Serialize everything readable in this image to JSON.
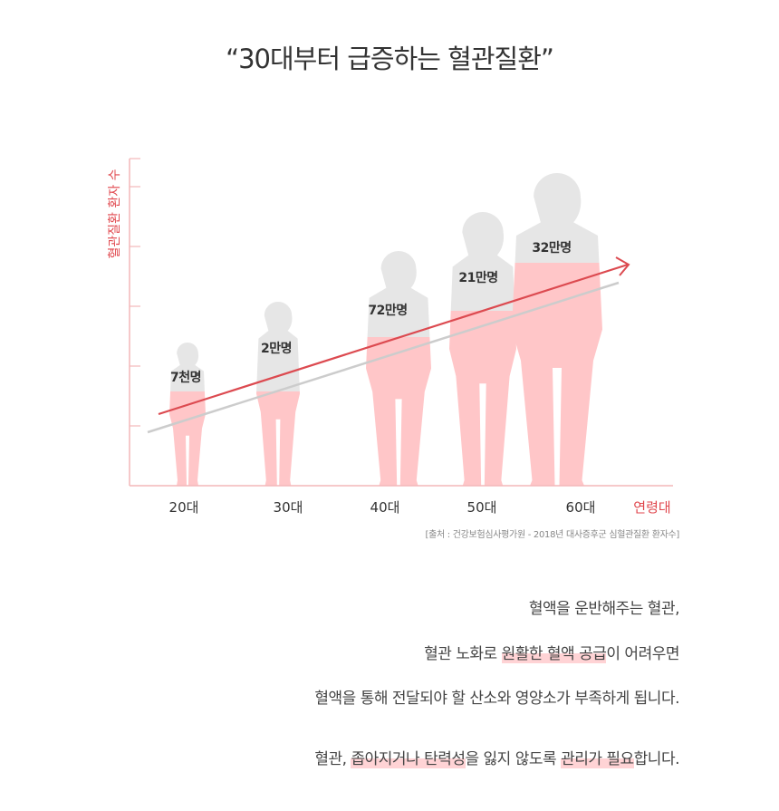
{
  "title": "“30대부터 급증하는 혈관질환”",
  "colors": {
    "accent": "#e0464c",
    "highlight": "#ffd3d5",
    "figure_grey": "#e6e6e6",
    "figure_pink": "#ffc6c8",
    "trend_grey": "#cccccc"
  },
  "chart_data": {
    "type": "bar",
    "title": "",
    "xlabel": "연령대",
    "ylabel": "혈관질환 환자 수",
    "categories": [
      "20대",
      "30대",
      "40대",
      "50대",
      "60대"
    ],
    "data_labels": [
      "7천명",
      "2만명",
      "72만명",
      "21만명",
      "32만명"
    ],
    "values": [
      7000,
      20000,
      720000,
      210000,
      320000
    ],
    "grid": false,
    "trend_arrow": true
  },
  "source": "[출처 : 건강보험심사평가원 - 2018년 대사증후군 심혈관질환 환자수]",
  "body": {
    "lines": [
      [
        {
          "text": "혈액을 운반해주는 혈관,",
          "hl": false
        }
      ],
      [
        {
          "text": "혈관 노화로 ",
          "hl": false
        },
        {
          "text": "원활한 혈액 공급",
          "hl": true
        },
        {
          "text": "이 어려우면",
          "hl": false
        }
      ],
      [
        {
          "text": "혈액을 통해 전달되야 할 산소와 영양소가 부족하게 됩니다.",
          "hl": false
        }
      ],
      [
        {
          "text": "혈관, ",
          "hl": false
        },
        {
          "text": "좁아지거나 탄력성",
          "hl": true
        },
        {
          "text": "을 잃지 않도록 ",
          "hl": false
        },
        {
          "text": "관리가 필요",
          "hl": true
        },
        {
          "text": "합니다.",
          "hl": false
        }
      ]
    ]
  }
}
